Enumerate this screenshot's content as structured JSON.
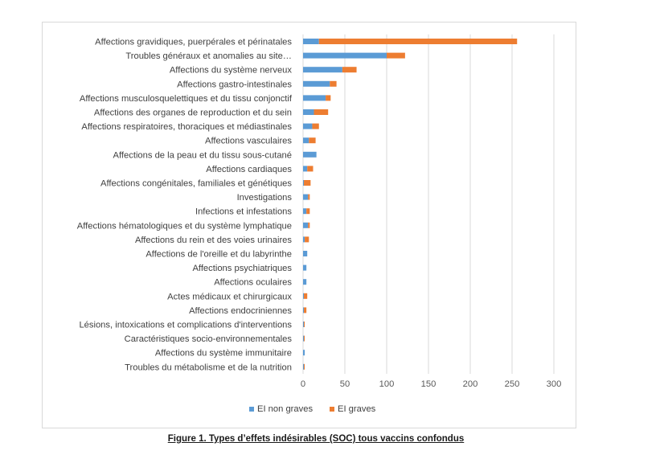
{
  "caption": "Figure 1. Types d’effets indésirables (SOC) tous vaccins confondus",
  "chart_data": {
    "type": "bar",
    "orientation": "horizontal",
    "stacked": true,
    "categories": [
      "Affections gravidiques, puerpérales et périnatales",
      "Troubles généraux et anomalies au site…",
      "Affections du système nerveux",
      "Affections gastro-intestinales",
      "Affections musculosquelettiques et du tissu conjonctif",
      "Affections des organes de reproduction et du sein",
      "Affections respiratoires, thoraciques et médiastinales",
      "Affections vasculaires",
      "Affections de la peau et du tissu sous-cutané",
      "Affections cardiaques",
      "Affections congénitales, familiales et génétiques",
      "Investigations",
      "Infections et infestations",
      "Affections hématologiques et du système lymphatique",
      "Affections du rein et des voies urinaires",
      "Affections de l'oreille et du labyrinthe",
      "Affections psychiatriques",
      "Affections oculaires",
      "Actes médicaux et chirurgicaux",
      "Affections endocriniennes",
      "Lésions, intoxications et complications d'interventions",
      "Caractéristiques socio-environnementales",
      "Affections du système immunitaire",
      "Troubles du métabolisme et de la nutrition"
    ],
    "series": [
      {
        "name": "EI non graves",
        "color": "#5b9bd5",
        "values": [
          19,
          100,
          47,
          32,
          27,
          13,
          11,
          7,
          16,
          5,
          1,
          6,
          4,
          6,
          2,
          5,
          4,
          4,
          1,
          1,
          1,
          1,
          2,
          1
        ]
      },
      {
        "name": "EI graves",
        "color": "#ed7d31",
        "values": [
          237,
          22,
          17,
          8,
          6,
          17,
          8,
          8,
          0,
          7,
          8,
          2,
          4,
          2,
          5,
          0,
          0,
          0,
          4,
          3,
          1,
          1,
          0,
          1
        ]
      }
    ],
    "xlim": [
      0,
      300
    ],
    "xticks": [
      "0",
      "50",
      "100",
      "150",
      "200",
      "250",
      "300"
    ],
    "grid": true,
    "legend": "bottom"
  }
}
